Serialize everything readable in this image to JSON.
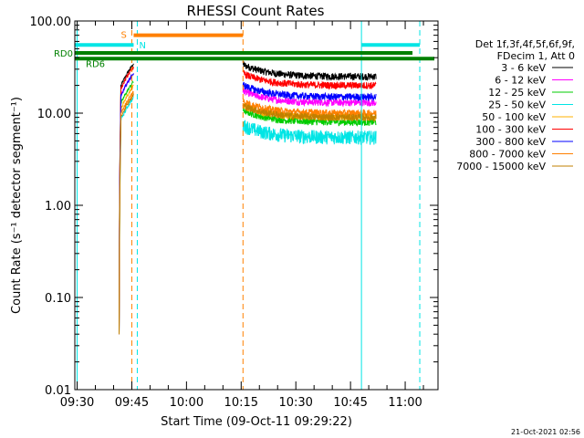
{
  "chart_data": {
    "type": "line",
    "title": "RHESSI Count Rates",
    "xlabel": "Start Time (09-Oct-11 09:29:22)",
    "ylabel": "Count Rate (s⁻¹ detector segment⁻¹)",
    "yscale": "log",
    "ylim": [
      0.01,
      100
    ],
    "xlim": [
      "09:29:22",
      "11:09:00"
    ],
    "x_ticks": [
      "09:30",
      "09:45",
      "10:00",
      "10:15",
      "10:30",
      "10:45",
      "11:00"
    ],
    "y_ticks": [
      "0.01",
      "0.10",
      "1.00",
      "10.00",
      "100.00"
    ],
    "legend": {
      "placement": "right",
      "header": [
        "Det 1f,3f,4f,5f,6f,9f,",
        "FDecim 1, Att 0"
      ],
      "entries": [
        {
          "label": "3 - 6 keV",
          "color": "#000000"
        },
        {
          "label": "6 - 12 keV",
          "color": "#ff00ff"
        },
        {
          "label": "12 - 25 keV",
          "color": "#00cc00"
        },
        {
          "label": "25 - 50 keV",
          "color": "#00e5e5"
        },
        {
          "label": "50 - 100 keV",
          "color": "#ffb000"
        },
        {
          "label": "100 - 300 keV",
          "color": "#ff0000"
        },
        {
          "label": "300 - 800 keV",
          "color": "#0000ff"
        },
        {
          "label": "800 - 7000 keV",
          "color": "#ff8000"
        },
        {
          "label": "7000 - 15000 keV",
          "color": "#c08000"
        }
      ]
    },
    "series": [
      {
        "name": "3 - 6 keV",
        "color": "#000000",
        "segment_values": [
          28,
          25
        ]
      },
      {
        "name": "6 - 12 keV",
        "color": "#ff00ff",
        "segment_values": [
          22,
          13
        ]
      },
      {
        "name": "12 - 25 keV",
        "color": "#00cc00",
        "segment_values": [
          18,
          8
        ]
      },
      {
        "name": "25 - 50 keV",
        "color": "#00e5e5",
        "segment_values": [
          12,
          5.5
        ]
      },
      {
        "name": "50 - 100 keV",
        "color": "#ffb000",
        "segment_values": [
          16,
          9
        ]
      },
      {
        "name": "100 - 300 keV",
        "color": "#ff0000",
        "segment_values": [
          26,
          20
        ]
      },
      {
        "name": "300 - 800 keV",
        "color": "#0000ff",
        "segment_values": [
          22,
          15
        ]
      },
      {
        "name": "800 - 7000 keV",
        "color": "#ff8000",
        "segment_values": [
          14,
          10
        ]
      },
      {
        "name": "7000 - 15000 keV",
        "color": "#c08000",
        "segment_values": [
          13,
          9
        ]
      }
    ],
    "segments": [
      {
        "start": "09:41:30",
        "end": "09:45:30"
      },
      {
        "start": "10:15:30",
        "end": "10:52:00"
      }
    ],
    "flags": [
      {
        "label": "S",
        "color": "#ff8000",
        "start": "09:45:30",
        "end": "10:15:30",
        "level": 70
      },
      {
        "label": "N",
        "color": "#00e5e5",
        "start": "09:29:22",
        "end": "09:45:30",
        "level": 55
      },
      {
        "label": "",
        "color": "#00e5e5",
        "start": "10:48:00",
        "end": "11:04:00",
        "level": 55
      },
      {
        "label": "RD0",
        "color": "#008000",
        "start": "09:29:22",
        "end": "11:02:00",
        "level": 45
      },
      {
        "label": "RD6",
        "color": "#008000",
        "start": "09:29:22",
        "end": "11:08:00",
        "level": 39
      }
    ],
    "vertical_markers": [
      {
        "time": "09:30:00",
        "color": "#00e5e5",
        "style": "solid"
      },
      {
        "time": "09:45:00",
        "color": "#ff8000",
        "style": "dashed"
      },
      {
        "time": "09:46:30",
        "color": "#00e5e5",
        "style": "dashed"
      },
      {
        "time": "10:15:30",
        "color": "#ff8000",
        "style": "dashed"
      },
      {
        "time": "10:48:00",
        "color": "#00e5e5",
        "style": "solid"
      },
      {
        "time": "11:04:00",
        "color": "#00e5e5",
        "style": "dashed"
      }
    ]
  },
  "timestamp": "21-Oct-2021 02:56"
}
